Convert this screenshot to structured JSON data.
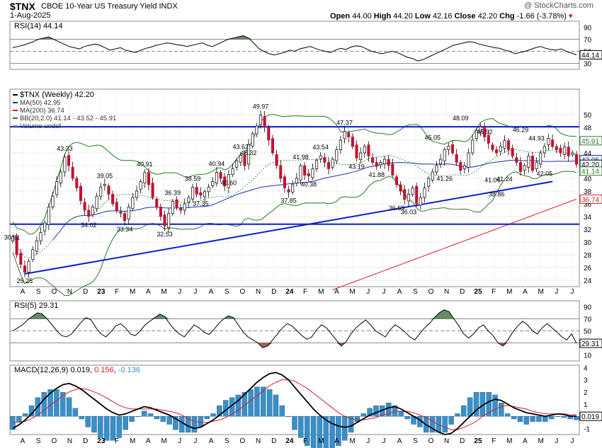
{
  "header": {
    "symbol": "$TNX",
    "name": "CBOE 10-Year US Treasury Yield INDX",
    "date": "1-Aug-2025",
    "watermark": "@ StockCharts.com",
    "quote": {
      "open_label": "Open",
      "open": "44.00",
      "high_label": "High",
      "high": "44.20",
      "low_label": "Low",
      "low": "42.16",
      "close_label": "Close",
      "close": "42.20",
      "chg_label": "Chg",
      "chg": "-1.66 (-3.78%)"
    }
  },
  "colors": {
    "up": "#ffffff",
    "down": "#c8102e",
    "ma50": "#1f2fb0",
    "ma200": "#d21f2b",
    "bb": "#2a7a2a",
    "trend": "#0a1fcc",
    "macd": "#000000",
    "signal": "#d21f2b",
    "hist": "#3a8fc8",
    "rsi_fill": "#3f6f3f",
    "rsi_fill_low": "#8a3a3a"
  },
  "chart_data": [
    {
      "type": "line",
      "panel": "rsi14",
      "title": "RSI(14) 44.14",
      "last_label": "44.14",
      "ylim": [
        20,
        100
      ],
      "yticks": [
        90,
        70,
        50,
        30
      ],
      "levels": [
        70,
        50,
        30
      ],
      "values": [
        56,
        58,
        60,
        63,
        66,
        70,
        72,
        74,
        70,
        66,
        62,
        58,
        56,
        54,
        58,
        60,
        62,
        60,
        56,
        52,
        54,
        56,
        52,
        50,
        48,
        52,
        55,
        57,
        60,
        62,
        64,
        63,
        61,
        60,
        58,
        60,
        62,
        64,
        60,
        58,
        62,
        66,
        70,
        72,
        74,
        76,
        72,
        64,
        55,
        50,
        46,
        44,
        46,
        48,
        52,
        50,
        54,
        56,
        58,
        55,
        52,
        50,
        48,
        52,
        55,
        53,
        57,
        59,
        58,
        54,
        50,
        48,
        46,
        48,
        50,
        48,
        44,
        40,
        38,
        34,
        36,
        40,
        44,
        48,
        52,
        56,
        60,
        62,
        64,
        66,
        65,
        62,
        60,
        58,
        56,
        55,
        52,
        50,
        46,
        48,
        50,
        53,
        56,
        58,
        55,
        53,
        52,
        54,
        50,
        47,
        44.14
      ]
    },
    {
      "type": "candlestick",
      "panel": "price",
      "title": "$TNX (Weekly) 42.20",
      "ylim": [
        23,
        54
      ],
      "yticks": [
        50,
        48,
        46,
        44,
        42,
        40,
        38,
        36,
        34,
        32,
        30,
        28,
        26,
        24
      ],
      "xticks": [
        "A",
        "S",
        "O",
        "N",
        "D",
        "23",
        "F",
        "M",
        "A",
        "M",
        "J",
        "J",
        "A",
        "S",
        "O",
        "N",
        "D",
        "24",
        "F",
        "M",
        "A",
        "M",
        "J",
        "J",
        "A",
        "S",
        "O",
        "N",
        "D",
        "25",
        "F",
        "M",
        "A",
        "M",
        "J",
        "J"
      ],
      "legend": [
        {
          "label": "$TNX (Weekly) 42.20",
          "color": "#000000"
        },
        {
          "label": "MA(50) 42.95",
          "color": "#1f2fb0"
        },
        {
          "label": "MA(200) 36.74",
          "color": "#d21f2b"
        },
        {
          "label": "BB(20,2.0) 41.14 - 43.52 - 45.91",
          "color": "#2a7a2a"
        },
        {
          "label": "Volume undef",
          "color": "#888888"
        }
      ],
      "last_values": [
        {
          "value": 45.91,
          "label": "45.91",
          "color": "#2a7a2a"
        },
        {
          "value": 42.95,
          "label": "42.95",
          "color": "#1f2fb0"
        },
        {
          "value": 42.2,
          "label": "42.20",
          "color": "#000000"
        },
        {
          "value": 41.14,
          "label": "41.14",
          "color": "#2a7a2a"
        },
        {
          "value": 36.74,
          "label": "36.74",
          "color": "#d21f2b"
        }
      ],
      "closes": [
        30.81,
        28.0,
        26.5,
        25.25,
        27.0,
        28.8,
        30.2,
        31.5,
        33.0,
        35.5,
        37.2,
        39.5,
        41.0,
        43.33,
        42.0,
        40.0,
        38.5,
        36.5,
        35.0,
        34.02,
        35.5,
        37.2,
        38.6,
        39.05,
        37.5,
        36.0,
        35.0,
        34.5,
        33.34,
        35.5,
        37.0,
        38.0,
        39.5,
        40.91,
        39.0,
        37.0,
        35.5,
        34.0,
        32.53,
        34.5,
        36.39,
        35.5,
        35.0,
        36.0,
        37.0,
        38.59,
        37.5,
        37.35,
        37.9,
        38.6,
        39.5,
        40.94,
        40.0,
        38.8,
        40.6,
        41.5,
        42.8,
        43.62,
        42.0,
        45.32,
        47.0,
        48.2,
        49.97,
        48.0,
        46.0,
        44.0,
        42.0,
        40.0,
        38.5,
        37.85,
        39.0,
        40.0,
        41.98,
        40.5,
        40.38,
        41.5,
        42.8,
        43.54,
        42.5,
        41.5,
        43.0,
        44.5,
        46.0,
        47.37,
        46.5,
        45.0,
        43.19,
        44.0,
        45.0,
        43.5,
        42.5,
        41.88,
        42.5,
        43.0,
        42.0,
        40.5,
        39.0,
        38.0,
        36.69,
        37.5,
        38.5,
        36.03,
        37.0,
        38.5,
        40.0,
        41.0,
        42.0,
        43.0,
        44.5,
        45.05,
        44.0,
        42.5,
        41.26,
        42.0,
        44.0,
        46.0,
        47.5,
        48.09,
        46.5,
        45.5,
        44.5,
        44.0,
        45.0,
        45.92,
        44.5,
        43.5,
        42.5,
        41.06,
        42.0,
        43.5,
        41.24,
        42.5,
        44.0,
        45.0,
        46.29,
        45.0,
        44.5,
        44.0,
        44.93,
        43.5,
        44.0,
        42.2
      ],
      "labels": [
        {
          "text": "30.81",
          "i": 0,
          "v": 30.81,
          "pos": "left"
        },
        {
          "text": "25.25",
          "i": 3,
          "v": 25.25,
          "pos": "below"
        },
        {
          "text": "43.33",
          "i": 13,
          "v": 43.33,
          "pos": "above"
        },
        {
          "text": "34.02",
          "i": 19,
          "v": 34.02,
          "pos": "below"
        },
        {
          "text": "39.05",
          "i": 23,
          "v": 39.05,
          "pos": "above"
        },
        {
          "text": "33.34",
          "i": 28,
          "v": 33.34,
          "pos": "below"
        },
        {
          "text": "40.91",
          "i": 33,
          "v": 40.91,
          "pos": "above"
        },
        {
          "text": "32.53",
          "i": 38,
          "v": 32.53,
          "pos": "below"
        },
        {
          "text": "36.39",
          "i": 40,
          "v": 36.39,
          "pos": "above"
        },
        {
          "text": "38.59",
          "i": 45,
          "v": 38.59,
          "pos": "above"
        },
        {
          "text": "37.35",
          "i": 47,
          "v": 37.35,
          "pos": "below"
        },
        {
          "text": "40.94",
          "i": 51,
          "v": 40.94,
          "pos": "above"
        },
        {
          "text": "40.60",
          "i": 54,
          "v": 40.6,
          "pos": "below"
        },
        {
          "text": "43.62",
          "i": 57,
          "v": 43.62,
          "pos": "above"
        },
        {
          "text": "45.32",
          "i": 59,
          "v": 45.32,
          "pos": "below"
        },
        {
          "text": "49.97",
          "i": 62,
          "v": 49.97,
          "pos": "above"
        },
        {
          "text": "37.85",
          "i": 69,
          "v": 37.85,
          "pos": "below"
        },
        {
          "text": "41.98",
          "i": 72,
          "v": 41.98,
          "pos": "above"
        },
        {
          "text": "40.38",
          "i": 74,
          "v": 40.38,
          "pos": "below"
        },
        {
          "text": "43.54",
          "i": 77,
          "v": 43.54,
          "pos": "above"
        },
        {
          "text": "47.37",
          "i": 83,
          "v": 47.37,
          "pos": "above"
        },
        {
          "text": "43.19",
          "i": 86,
          "v": 43.19,
          "pos": "below"
        },
        {
          "text": "41.88",
          "i": 91,
          "v": 41.88,
          "pos": "below"
        },
        {
          "text": "36.69",
          "i": 96,
          "v": 36.69,
          "pos": "below"
        },
        {
          "text": "36.03",
          "i": 99,
          "v": 36.03,
          "pos": "below"
        },
        {
          "text": "45.05",
          "i": 105,
          "v": 45.05,
          "pos": "above"
        },
        {
          "text": "41.26",
          "i": 108,
          "v": 41.26,
          "pos": "below"
        },
        {
          "text": "48.09",
          "i": 112,
          "v": 48.09,
          "pos": "above"
        },
        {
          "text": "45.92",
          "i": 118,
          "v": 45.92,
          "pos": "above"
        },
        {
          "text": "41.06",
          "i": 120,
          "v": 41.06,
          "pos": "below"
        },
        {
          "text": "38.86",
          "i": 121,
          "v": 38.86,
          "pos": "below"
        },
        {
          "text": "41.24",
          "i": 123,
          "v": 41.24,
          "pos": "below"
        },
        {
          "text": "46.29",
          "i": 127,
          "v": 46.29,
          "pos": "above"
        },
        {
          "text": "44.93",
          "i": 131,
          "v": 44.93,
          "pos": "above"
        },
        {
          "text": "42.05",
          "i": 133,
          "v": 42.05,
          "pos": "below"
        }
      ],
      "horizontal_lines": [
        48.1,
        32.8
      ],
      "trendline": {
        "from": [
          3,
          25.0
        ],
        "to": [
          135,
          39.5
        ]
      }
    },
    {
      "type": "line",
      "panel": "rsi5",
      "title": "RSI(5) 29.31",
      "last_label": "29.31",
      "ylim": [
        0,
        100
      ],
      "yticks": [
        90,
        70,
        50,
        30,
        10
      ],
      "levels": [
        70,
        50,
        30
      ],
      "values": [
        50,
        55,
        60,
        68,
        74,
        80,
        78,
        70,
        60,
        50,
        42,
        40,
        45,
        55,
        65,
        72,
        68,
        55,
        45,
        40,
        48,
        58,
        62,
        55,
        45,
        42,
        50,
        60,
        66,
        72,
        78,
        74,
        62,
        52,
        45,
        40,
        50,
        60,
        55,
        48,
        44,
        52,
        62,
        70,
        75,
        72,
        60,
        48,
        40,
        35,
        30,
        22,
        25,
        35,
        45,
        55,
        62,
        58,
        50,
        42,
        36,
        40,
        52,
        60,
        55,
        45,
        35,
        25,
        32,
        45,
        55,
        62,
        68,
        60,
        50,
        45,
        40,
        52,
        60,
        55,
        48,
        40,
        35,
        45,
        55,
        62,
        72,
        80,
        85,
        82,
        70,
        58,
        45,
        38,
        45,
        55,
        60,
        50,
        42,
        30,
        25,
        35,
        48,
        58,
        66,
        60,
        50,
        45,
        55,
        62,
        55,
        48,
        40,
        35,
        45,
        29.31
      ]
    },
    {
      "type": "line",
      "panel": "macd",
      "title": "MACD(12,26,9) 0.019, 0.156, -0.136",
      "title_parts": [
        "MACD(12,26,9) 0.019, ",
        "0.156",
        ", ",
        "-0.136"
      ],
      "last_label": "0.019",
      "ylim": [
        -1.5,
        4.2
      ],
      "yticks": [
        4,
        3,
        2,
        1,
        -1
      ],
      "series": [
        {
          "name": "macd",
          "values": [
            -1.0,
            -0.7,
            -0.3,
            0.2,
            0.8,
            1.4,
            1.9,
            2.3,
            2.6,
            2.7,
            2.5,
            2.2,
            1.8,
            1.4,
            1.0,
            0.6,
            0.3,
            0.1,
            0.2,
            0.4,
            0.6,
            0.8,
            0.7,
            0.5,
            0.3,
            0.1,
            -0.2,
            -0.5,
            -0.8,
            -1.0,
            -0.9,
            -0.6,
            -0.3,
            0.1,
            0.5,
            0.9,
            1.3,
            1.8,
            2.3,
            2.8,
            3.2,
            3.5,
            3.6,
            3.4,
            3.0,
            2.4,
            1.8,
            1.2,
            0.6,
            0.1,
            -0.3,
            -0.6,
            -0.8,
            -0.9,
            -0.8,
            -0.5,
            -0.2,
            0.1,
            0.3,
            0.5,
            0.7,
            0.8,
            0.6,
            0.3,
            0.0,
            -0.3,
            -0.7,
            -1.0,
            -1.3,
            -1.5,
            -1.4,
            -1.0,
            -0.5,
            0.0,
            0.5,
            0.9,
            1.2,
            1.4,
            1.3,
            1.0,
            0.7,
            0.5,
            0.3,
            0.2,
            0.1,
            0.0,
            0.1,
            0.2,
            0.15,
            0.0,
            0.019
          ]
        },
        {
          "name": "signal",
          "values": [
            -0.5,
            -0.5,
            -0.4,
            -0.2,
            0.1,
            0.5,
            0.9,
            1.3,
            1.7,
            2.0,
            2.2,
            2.3,
            2.2,
            2.0,
            1.8,
            1.5,
            1.2,
            0.9,
            0.7,
            0.6,
            0.6,
            0.6,
            0.6,
            0.6,
            0.5,
            0.4,
            0.3,
            0.1,
            -0.2,
            -0.4,
            -0.5,
            -0.5,
            -0.4,
            -0.3,
            -0.1,
            0.2,
            0.5,
            0.9,
            1.3,
            1.7,
            2.1,
            2.5,
            2.8,
            3.0,
            3.0,
            2.9,
            2.6,
            2.3,
            1.9,
            1.5,
            1.1,
            0.7,
            0.3,
            0.0,
            -0.2,
            -0.3,
            -0.3,
            -0.2,
            -0.1,
            0.1,
            0.2,
            0.4,
            0.4,
            0.4,
            0.3,
            0.1,
            -0.1,
            -0.4,
            -0.7,
            -0.9,
            -1.1,
            -1.1,
            -0.9,
            -0.7,
            -0.4,
            0.0,
            0.3,
            0.6,
            0.8,
            0.9,
            0.8,
            0.7,
            0.6,
            0.4,
            0.3,
            0.2,
            0.2,
            0.2,
            0.2,
            0.1,
            0.156
          ]
        }
      ]
    }
  ]
}
